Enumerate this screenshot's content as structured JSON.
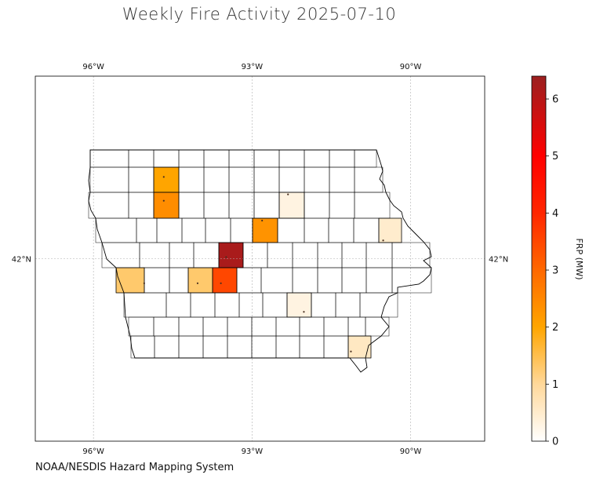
{
  "title": "Weekly Fire Activity 2025-07-10",
  "credit": "NOAA/NESDIS Hazard Mapping System",
  "map": {
    "lon_range": [
      -97.1,
      -88.6
    ],
    "lat_range": [
      39.7,
      44.3
    ],
    "lon_ticks": [
      {
        "value": -96,
        "label": "96°W"
      },
      {
        "value": -93,
        "label": "93°W"
      },
      {
        "value": -90,
        "label": "90°W"
      }
    ],
    "lat_ticks": [
      {
        "value": 42,
        "label": "42°N"
      }
    ],
    "grid": true,
    "colors": {
      "county_border": "#000000",
      "grid": "#b0b0b0"
    }
  },
  "colorbar": {
    "label": "FRP (MW)",
    "min": 0,
    "max": 6.4,
    "ticks": [
      {
        "value": 0,
        "label": "0"
      },
      {
        "value": 1,
        "label": "1"
      },
      {
        "value": 2,
        "label": "2"
      },
      {
        "value": 3,
        "label": "3"
      },
      {
        "value": 4,
        "label": "4"
      },
      {
        "value": 5,
        "label": "5"
      },
      {
        "value": 6,
        "label": "6"
      }
    ],
    "stops": [
      {
        "value": 0,
        "color": "#ffffff"
      },
      {
        "value": 1,
        "color": "#ffd89a"
      },
      {
        "value": 2,
        "color": "#ffa500"
      },
      {
        "value": 3,
        "color": "#ff6800"
      },
      {
        "value": 4,
        "color": "#ff2600"
      },
      {
        "value": 5,
        "color": "#ff0000"
      },
      {
        "value": 6.4,
        "color": "#9b2020"
      }
    ]
  },
  "chart_data": {
    "type": "choropleth",
    "region": "Iowa counties",
    "value_name": "FRP (MW)",
    "highlighted": [
      {
        "lon": -94.67,
        "lat": 43.03,
        "frp": 2.0
      },
      {
        "lon": -94.67,
        "lat": 42.73,
        "frp": 2.4
      },
      {
        "lon": -92.81,
        "lat": 42.48,
        "frp": 2.3
      },
      {
        "lon": -92.32,
        "lat": 42.81,
        "frp": 0.3
      },
      {
        "lon": -90.52,
        "lat": 42.23,
        "frp": 0.5
      },
      {
        "lon": -93.49,
        "lat": 42.02,
        "frp": 6.2
      },
      {
        "lon": -93.59,
        "lat": 41.69,
        "frp": 3.5
      },
      {
        "lon": -94.03,
        "lat": 41.69,
        "frp": 1.3
      },
      {
        "lon": -95.04,
        "lat": 41.69,
        "frp": 1.3
      },
      {
        "lon": -92.02,
        "lat": 41.33,
        "frp": 0.3
      },
      {
        "lon": -91.13,
        "lat": 40.83,
        "frp": 0.6
      }
    ]
  }
}
